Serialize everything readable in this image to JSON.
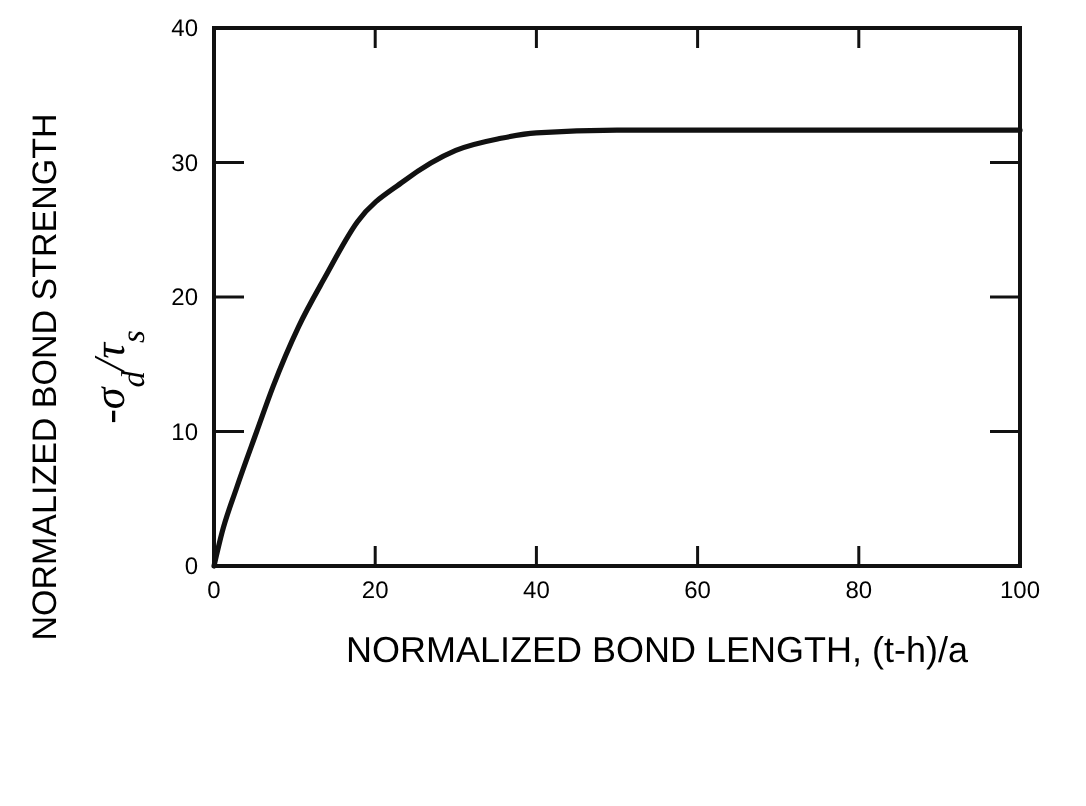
{
  "chart_data": {
    "type": "line",
    "xlabel": "NORMALIZED BOND LENGTH, (t-h)/a",
    "ylabel": "NORMALIZED BOND STRENGTH\n-σ$_{d}$/τ$_{s}$",
    "x": [
      0,
      1,
      2.8,
      5.3,
      7.3,
      10.5,
      13.8,
      17.8,
      23.5,
      30,
      35.6,
      40,
      50,
      60,
      80,
      100
    ],
    "series": [
      {
        "color": "#111111",
        "values": [
          0,
          2.5,
          5.8,
          10,
          13.3,
          17.8,
          21.5,
          25.6,
          28.6,
          30.9,
          31.8,
          32.2,
          32.4,
          32.4,
          32.4,
          32.4
        ]
      }
    ],
    "xlim": [
      0,
      100
    ],
    "ylim": [
      0,
      40
    ],
    "xticks": [
      0,
      20,
      40,
      60,
      80,
      100
    ],
    "yticks": [
      0,
      10,
      20,
      30,
      40
    ],
    "marker": "none",
    "line_style": "solid"
  }
}
